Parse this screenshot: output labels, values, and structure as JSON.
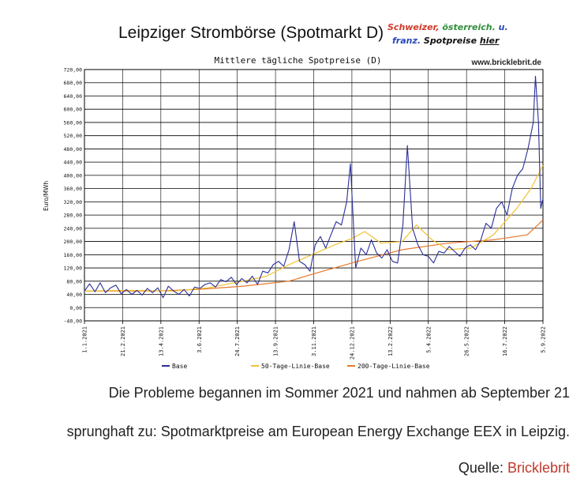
{
  "header": {
    "title": "Leipziger Strombörse (Spotmarkt D)",
    "note_line1": [
      "Schweizer,",
      "österreich.",
      "u."
    ],
    "note_line2": [
      "franz.",
      "Spotpreise",
      "hier"
    ]
  },
  "caption": {
    "line1": "Die Probleme begannen im Sommer 2021 und nahmen ab September 21",
    "line2": "sprunghaft zu: Spotmarktpreise am European Energy Exchange EEX in Leipzig.",
    "source_label": "Quelle:",
    "source_link": "Bricklebrit"
  },
  "colors": {
    "base": "#2b2f9a",
    "ma50": "#f2c230",
    "ma200": "#e8772a",
    "grid": "#000000",
    "note_red": "#d23a2a",
    "note_green": "#2f8f3a",
    "note_blue": "#2a49b8"
  },
  "chart_data": {
    "type": "line",
    "title": "Mittlere tägliche Spotpreise (D)",
    "watermark": "www.bricklebrit.de",
    "ylabel": "Euro/MWh",
    "ylim": [
      -40,
      720
    ],
    "yticks": [
      "-40,00",
      "0,00",
      "40,00",
      "80,00",
      "120,00",
      "160,00",
      "200,00",
      "240,00",
      "280,00",
      "320,00",
      "360,00",
      "400,00",
      "440,00",
      "480,00",
      "520,00",
      "560,00",
      "600,00",
      "640,00",
      "680,00",
      "720,00"
    ],
    "xlim": [
      "2021-01-01",
      "2022-09-05"
    ],
    "xticks": [
      "1.1.2021",
      "21.2.2021",
      "13.4.2021",
      "3.6.2021",
      "24.7.2021",
      "13.9.2021",
      "3.11.2021",
      "24.12.2021",
      "13.2.2022",
      "5.4.2022",
      "26.5.2022",
      "16.7.2022",
      "5.9.2022"
    ],
    "grid": true,
    "legend_position": "bottom",
    "series": [
      {
        "name": "Base",
        "points": [
          [
            "2021-01-01",
            50
          ],
          [
            "2021-01-08",
            72
          ],
          [
            "2021-01-15",
            48
          ],
          [
            "2021-01-22",
            75
          ],
          [
            "2021-01-29",
            45
          ],
          [
            "2021-02-05",
            60
          ],
          [
            "2021-02-12",
            68
          ],
          [
            "2021-02-19",
            42
          ],
          [
            "2021-02-26",
            55
          ],
          [
            "2021-03-05",
            40
          ],
          [
            "2021-03-12",
            52
          ],
          [
            "2021-03-19",
            38
          ],
          [
            "2021-03-26",
            58
          ],
          [
            "2021-04-02",
            45
          ],
          [
            "2021-04-09",
            60
          ],
          [
            "2021-04-16",
            30
          ],
          [
            "2021-04-23",
            65
          ],
          [
            "2021-04-30",
            50
          ],
          [
            "2021-05-07",
            40
          ],
          [
            "2021-05-14",
            55
          ],
          [
            "2021-05-21",
            35
          ],
          [
            "2021-05-28",
            62
          ],
          [
            "2021-06-04",
            58
          ],
          [
            "2021-06-11",
            70
          ],
          [
            "2021-06-18",
            75
          ],
          [
            "2021-06-25",
            62
          ],
          [
            "2021-07-02",
            85
          ],
          [
            "2021-07-09",
            78
          ],
          [
            "2021-07-16",
            92
          ],
          [
            "2021-07-23",
            70
          ],
          [
            "2021-07-30",
            88
          ],
          [
            "2021-08-06",
            75
          ],
          [
            "2021-08-13",
            95
          ],
          [
            "2021-08-20",
            70
          ],
          [
            "2021-08-27",
            110
          ],
          [
            "2021-09-03",
            105
          ],
          [
            "2021-09-10",
            130
          ],
          [
            "2021-09-17",
            140
          ],
          [
            "2021-09-24",
            125
          ],
          [
            "2021-10-01",
            175
          ],
          [
            "2021-10-08",
            260
          ],
          [
            "2021-10-15",
            140
          ],
          [
            "2021-10-22",
            130
          ],
          [
            "2021-10-29",
            110
          ],
          [
            "2021-11-05",
            190
          ],
          [
            "2021-11-12",
            215
          ],
          [
            "2021-11-19",
            180
          ],
          [
            "2021-11-26",
            220
          ],
          [
            "2021-12-03",
            260
          ],
          [
            "2021-12-10",
            250
          ],
          [
            "2021-12-17",
            320
          ],
          [
            "2021-12-22",
            435
          ],
          [
            "2021-12-29",
            120
          ],
          [
            "2022-01-05",
            180
          ],
          [
            "2022-01-12",
            160
          ],
          [
            "2022-01-19",
            205
          ],
          [
            "2022-01-26",
            165
          ],
          [
            "2022-02-02",
            150
          ],
          [
            "2022-02-09",
            175
          ],
          [
            "2022-02-16",
            140
          ],
          [
            "2022-02-23",
            135
          ],
          [
            "2022-03-02",
            250
          ],
          [
            "2022-03-08",
            490
          ],
          [
            "2022-03-15",
            240
          ],
          [
            "2022-03-22",
            190
          ],
          [
            "2022-03-29",
            160
          ],
          [
            "2022-04-05",
            155
          ],
          [
            "2022-04-12",
            135
          ],
          [
            "2022-04-19",
            170
          ],
          [
            "2022-04-26",
            165
          ],
          [
            "2022-05-03",
            185
          ],
          [
            "2022-05-10",
            170
          ],
          [
            "2022-05-17",
            155
          ],
          [
            "2022-05-24",
            180
          ],
          [
            "2022-05-31",
            190
          ],
          [
            "2022-06-07",
            175
          ],
          [
            "2022-06-14",
            205
          ],
          [
            "2022-06-21",
            255
          ],
          [
            "2022-06-28",
            240
          ],
          [
            "2022-07-05",
            300
          ],
          [
            "2022-07-12",
            320
          ],
          [
            "2022-07-19",
            280
          ],
          [
            "2022-07-26",
            360
          ],
          [
            "2022-08-02",
            400
          ],
          [
            "2022-08-09",
            420
          ],
          [
            "2022-08-16",
            480
          ],
          [
            "2022-08-23",
            560
          ],
          [
            "2022-08-26",
            700
          ],
          [
            "2022-08-30",
            560
          ],
          [
            "2022-09-02",
            300
          ],
          [
            "2022-09-05",
            330
          ]
        ]
      },
      {
        "name": "50-Tage-Linie-Base",
        "points": [
          [
            "2021-01-01",
            50
          ],
          [
            "2021-03-01",
            52
          ],
          [
            "2021-05-01",
            50
          ],
          [
            "2021-06-15",
            60
          ],
          [
            "2021-08-01",
            80
          ],
          [
            "2021-09-01",
            95
          ],
          [
            "2021-10-01",
            130
          ],
          [
            "2021-11-01",
            160
          ],
          [
            "2021-12-01",
            190
          ],
          [
            "2021-12-25",
            210
          ],
          [
            "2022-01-10",
            230
          ],
          [
            "2022-02-01",
            195
          ],
          [
            "2022-03-01",
            200
          ],
          [
            "2022-03-20",
            250
          ],
          [
            "2022-04-10",
            205
          ],
          [
            "2022-05-01",
            175
          ],
          [
            "2022-06-01",
            180
          ],
          [
            "2022-07-01",
            220
          ],
          [
            "2022-08-01",
            300
          ],
          [
            "2022-08-20",
            360
          ],
          [
            "2022-09-05",
            430
          ]
        ]
      },
      {
        "name": "200-Tage-Linie-Base",
        "points": [
          [
            "2021-01-01",
            50
          ],
          [
            "2021-04-01",
            50
          ],
          [
            "2021-06-01",
            55
          ],
          [
            "2021-08-01",
            65
          ],
          [
            "2021-10-01",
            80
          ],
          [
            "2021-11-15",
            110
          ],
          [
            "2022-01-01",
            140
          ],
          [
            "2022-03-01",
            175
          ],
          [
            "2022-05-01",
            195
          ],
          [
            "2022-07-01",
            205
          ],
          [
            "2022-08-15",
            220
          ],
          [
            "2022-09-05",
            265
          ]
        ]
      }
    ]
  }
}
